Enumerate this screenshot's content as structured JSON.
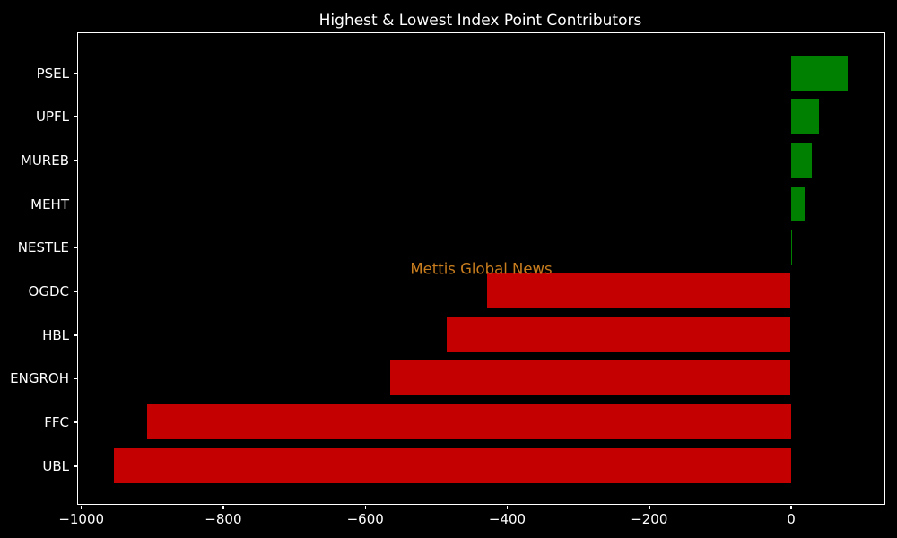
{
  "chart_data": {
    "type": "bar",
    "orientation": "horizontal",
    "title": "Highest & Lowest Index Point Contributors",
    "watermark": "Mettis Global News",
    "categories": [
      "PSEL",
      "UPFL",
      "MUREB",
      "MEHT",
      "NESTLE",
      "OGDC",
      "HBL",
      "ENGROH",
      "FFC",
      "UBL"
    ],
    "values": [
      80,
      40,
      30,
      19.5,
      2,
      -428,
      -485,
      -564,
      -907,
      -954
    ],
    "xlabel": "",
    "ylabel": "",
    "xlim": [
      -1004,
      132
    ],
    "x_ticks": [
      {
        "value": -1000,
        "label": "−1000"
      },
      {
        "value": -800,
        "label": "−800"
      },
      {
        "value": -600,
        "label": "−600"
      },
      {
        "value": -400,
        "label": "−400"
      },
      {
        "value": -200,
        "label": "−200"
      },
      {
        "value": 0,
        "label": "0"
      }
    ],
    "grid": false,
    "legend_position": "none",
    "colors": {
      "positive_bar": "#008000",
      "negative_bar": "#c40000",
      "background": "#000000",
      "axes_background": "#000000",
      "text": "#ffffff",
      "spine": "#ffffff",
      "watermark": "#c87d1e"
    }
  }
}
